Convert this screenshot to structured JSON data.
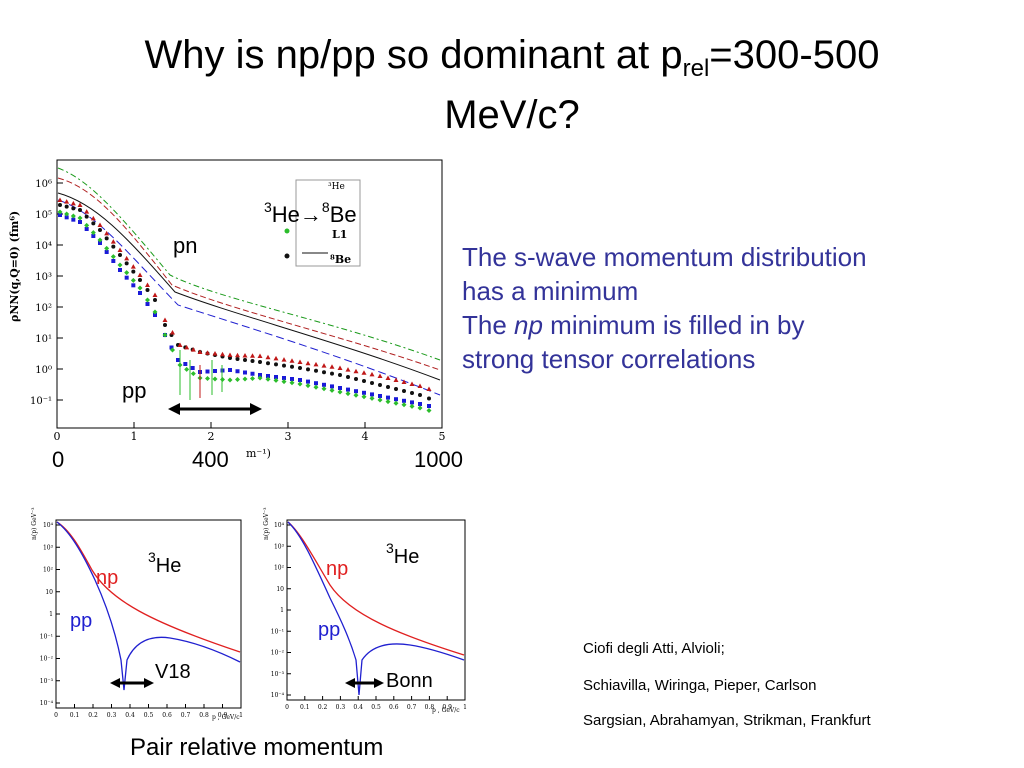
{
  "title": {
    "main": "Why is np/pp so dominant at p",
    "sub": "rel",
    "tail": "=300-500",
    "line2": "MeV/c?"
  },
  "text_block": {
    "line1": "The s-wave momentum distribution",
    "line2": "has a minimum",
    "line3_pre": "The ",
    "line3_em": "np",
    "line3_post": " minimum is filled in by",
    "line4": "strong tensor correlations"
  },
  "top_plot": {
    "ylabel": "ρNN(q,Q=0) (fm⁶)",
    "x_ticks": [
      "0",
      "1",
      "2",
      "3",
      "4",
      "5"
    ],
    "y_ticks": [
      "10⁶",
      "10⁵",
      "10⁴",
      "10³",
      "10²",
      "10¹",
      "10⁰",
      "10⁻¹"
    ],
    "xlabel_partial": "m⁻¹)",
    "legend_entries": [
      "³He",
      "L1",
      "⁸Be"
    ],
    "label_reaction_a": "3",
    "label_reaction_b": "He→",
    "label_reaction_c": "8",
    "label_reaction_d": "Be",
    "label_pn": "pn",
    "label_pp": "pp",
    "bottom_axis": [
      "0",
      "400",
      "1000"
    ]
  },
  "left_plot": {
    "label_he_sup": "3",
    "label_he": "He",
    "label_np": "np",
    "label_pp": "pp",
    "label_potential": "V18",
    "y_ticks": [
      "10⁴",
      "10³",
      "10²",
      "10",
      "1",
      "10⁻¹",
      "10⁻²",
      "10⁻³",
      "10⁻⁴"
    ],
    "x_ticks": [
      "0",
      "0.1",
      "0.2",
      "0.3",
      "0.4",
      "0.5",
      "0.6",
      "0.7",
      "0.8",
      "0.9",
      "1"
    ],
    "ylabel": "n(p) GeV⁻³",
    "xlabel": "p , GeV/c"
  },
  "right_plot": {
    "label_he_sup": "3",
    "label_he": "He",
    "label_np": "np",
    "label_pp": "pp",
    "label_potential": "Bonn",
    "y_ticks": [
      "10⁴",
      "10³",
      "10²",
      "10",
      "1",
      "10⁻¹",
      "10⁻²",
      "10⁻³",
      "10⁻⁴"
    ],
    "x_ticks": [
      "0",
      "0.1",
      "0.2",
      "0.3",
      "0.4",
      "0.5",
      "0.6",
      "0.7",
      "0.8",
      "0.9",
      "1"
    ],
    "ylabel": "n(p) GeV⁻³",
    "xlabel": "p , GeV/c"
  },
  "caption": "Pair relative momentum",
  "references": [
    "Ciofi degli Atti, Alvioli;",
    "Schiavilla, Wiringa, Pieper, Carlson",
    "Sargsian, Abrahamyan, Strikman, Frankfurt"
  ],
  "colors": {
    "text_blue": "#333399",
    "np_red": "#e02020",
    "pp_blue": "#2020d0"
  }
}
